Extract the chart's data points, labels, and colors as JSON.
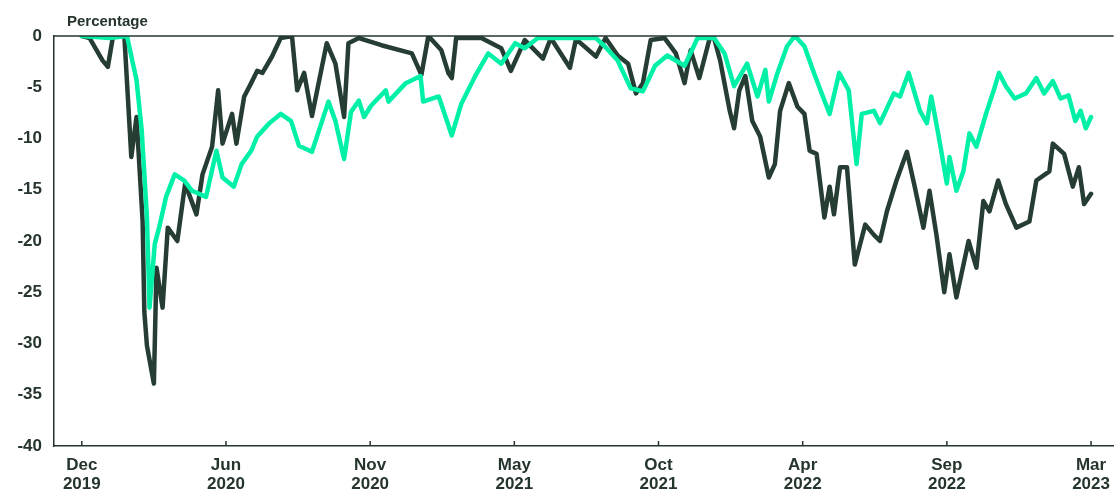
{
  "chart_data": {
    "type": "line",
    "ylabel": "Percentage",
    "xlim": [
      "2019-11-23",
      "2023-03-27"
    ],
    "ylim": [
      -40,
      0
    ],
    "yticks": [
      0,
      -5,
      -10,
      -15,
      -20,
      -25,
      -30,
      -35,
      -40
    ],
    "xticks": [
      {
        "value": "2019-12-25",
        "label": "Dec\n2019"
      },
      {
        "value": "2020-06-08",
        "label": "Jun\n2020"
      },
      {
        "value": "2020-11-21",
        "label": "Nov\n2020"
      },
      {
        "value": "2021-05-06",
        "label": "May\n2021"
      },
      {
        "value": "2021-10-19",
        "label": "Oct\n2021"
      },
      {
        "value": "2022-04-03",
        "label": "Apr\n2022"
      },
      {
        "value": "2022-09-16",
        "label": "Sep\n2022"
      },
      {
        "value": "2023-03-01",
        "label": "Mar\n2023"
      }
    ],
    "legend": false,
    "marker": "none",
    "line_style": "solid",
    "series": [
      {
        "color": "#00f0a8",
        "x": [
          "2019-12-25",
          "2020-01-26",
          "2020-02-15",
          "2020-02-26",
          "2020-03-03",
          "2020-03-09",
          "2020-03-12",
          "2020-03-18",
          "2020-03-23",
          "2020-03-31",
          "2020-04-10",
          "2020-04-21",
          "2020-04-30",
          "2020-05-16",
          "2020-05-28",
          "2020-06-04",
          "2020-06-17",
          "2020-06-26",
          "2020-07-07",
          "2020-07-14",
          "2020-07-28",
          "2020-08-10",
          "2020-08-22",
          "2020-08-31",
          "2020-09-15",
          "2020-10-04",
          "2020-10-12",
          "2020-10-22",
          "2020-10-30",
          "2020-11-08",
          "2020-11-14",
          "2020-11-22",
          "2020-12-09",
          "2020-12-12",
          "2021-01-01",
          "2021-01-18",
          "2021-01-21",
          "2021-02-08",
          "2021-02-23",
          "2021-03-06",
          "2021-03-22",
          "2021-04-06",
          "2021-04-21",
          "2021-05-07",
          "2021-05-18",
          "2021-06-02",
          "2021-07-07",
          "2021-08-08",
          "2021-08-18",
          "2021-09-02",
          "2021-09-17",
          "2021-10-01",
          "2021-10-15",
          "2021-10-29",
          "2021-11-18",
          "2021-12-03",
          "2021-12-22",
          "2022-01-03",
          "2022-01-14",
          "2022-01-29",
          "2022-02-10",
          "2022-02-19",
          "2022-02-23",
          "2022-03-05",
          "2022-03-16",
          "2022-03-25",
          "2022-04-05",
          "2022-04-16",
          "2022-04-28",
          "2022-05-04",
          "2022-05-15",
          "2022-05-26",
          "2022-06-04",
          "2022-06-10",
          "2022-06-24",
          "2022-07-01",
          "2022-07-17",
          "2022-07-24",
          "2022-08-03",
          "2022-08-16",
          "2022-08-24",
          "2022-08-29",
          "2022-09-06",
          "2022-09-16",
          "2022-09-19",
          "2022-09-27",
          "2022-10-05",
          "2022-10-12",
          "2022-10-20",
          "2022-10-31",
          "2022-11-09",
          "2022-11-15",
          "2022-11-23",
          "2022-12-03",
          "2022-12-16",
          "2022-12-28",
          "2023-01-06",
          "2023-01-16",
          "2023-01-25",
          "2023-02-03",
          "2023-02-11",
          "2023-02-17",
          "2023-02-23",
          "2023-03-01"
        ],
        "values": [
          0,
          -0.2,
          0,
          -4.3,
          -9.2,
          -17.7,
          -26.5,
          -20.3,
          -18.7,
          -15.7,
          -13.5,
          -14.1,
          -15.1,
          -15.7,
          -11.2,
          -13.8,
          -14.7,
          -12.5,
          -11.2,
          -9.8,
          -8.5,
          -7.6,
          -8.3,
          -10.7,
          -11.3,
          -6.4,
          -8.3,
          -12,
          -7.4,
          -6.3,
          -7.9,
          -6.8,
          -5.3,
          -6.4,
          -4.6,
          -3.9,
          -6.4,
          -5.9,
          -9.7,
          -6.6,
          -3.9,
          -1.7,
          -2.7,
          -0.7,
          -1.2,
          -0.2,
          -0.2,
          -0.2,
          -1,
          -2.4,
          -5.1,
          -5.4,
          -2.9,
          -1.9,
          -2.9,
          -0.2,
          -0.2,
          -1.7,
          -4.9,
          -2.7,
          -5.9,
          -3.3,
          -6.4,
          -3.6,
          -1,
          0,
          -1,
          -3.6,
          -6.3,
          -7.6,
          -3.6,
          -5.3,
          -12.5,
          -7.6,
          -7.3,
          -8.5,
          -5.6,
          -5.9,
          -3.6,
          -7.3,
          -8.5,
          -5.9,
          -9.5,
          -14.4,
          -11.8,
          -15.1,
          -13.2,
          -9.5,
          -10.8,
          -7.6,
          -5.3,
          -3.6,
          -4.9,
          -6.1,
          -5.6,
          -4.1,
          -5.6,
          -4.4,
          -6.1,
          -5.8,
          -8.3,
          -7.3,
          -9,
          -7.9
        ]
      },
      {
        "color": "#263d33",
        "x": [
          "2019-12-25",
          "2020-01-03",
          "2020-01-18",
          "2020-01-24",
          "2020-01-30",
          "2020-02-12",
          "2020-02-20",
          "2020-02-26",
          "2020-03-04",
          "2020-03-06",
          "2020-03-09",
          "2020-03-17",
          "2020-03-20",
          "2020-03-27",
          "2020-04-02",
          "2020-04-13",
          "2020-04-22",
          "2020-05-05",
          "2020-05-12",
          "2020-05-23",
          "2020-05-30",
          "2020-06-04",
          "2020-06-15",
          "2020-06-20",
          "2020-06-29",
          "2020-07-07",
          "2020-07-14",
          "2020-07-20",
          "2020-07-31",
          "2020-08-10",
          "2020-08-23",
          "2020-08-29",
          "2020-09-06",
          "2020-09-15",
          "2020-10-02",
          "2020-10-12",
          "2020-10-22",
          "2020-10-27",
          "2020-11-08",
          "2020-12-04",
          "2021-01-08",
          "2021-01-19",
          "2021-01-27",
          "2021-02-11",
          "2021-02-19",
          "2021-02-23",
          "2021-02-28",
          "2021-03-29",
          "2021-04-21",
          "2021-05-02",
          "2021-05-18",
          "2021-06-08",
          "2021-06-17",
          "2021-07-09",
          "2021-07-16",
          "2021-08-08",
          "2021-08-19",
          "2021-09-02",
          "2021-09-14",
          "2021-09-23",
          "2021-10-01",
          "2021-10-10",
          "2021-10-26",
          "2021-11-08",
          "2021-11-18",
          "2021-11-25",
          "2021-12-05",
          "2021-12-17",
          "2021-12-22",
          "2021-12-29",
          "2022-01-09",
          "2022-01-14",
          "2022-01-20",
          "2022-01-27",
          "2022-02-04",
          "2022-02-13",
          "2022-02-23",
          "2022-03-02",
          "2022-03-08",
          "2022-03-18",
          "2022-03-28",
          "2022-04-05",
          "2022-04-11",
          "2022-04-19",
          "2022-04-28",
          "2022-05-04",
          "2022-05-09",
          "2022-05-16",
          "2022-05-24",
          "2022-06-02",
          "2022-06-14",
          "2022-06-24",
          "2022-07-01",
          "2022-07-09",
          "2022-07-20",
          "2022-08-01",
          "2022-08-10",
          "2022-08-20",
          "2022-08-27",
          "2022-09-04",
          "2022-09-13",
          "2022-09-19",
          "2022-09-27",
          "2022-10-11",
          "2022-10-20",
          "2022-10-28",
          "2022-11-04",
          "2022-11-14",
          "2022-11-23",
          "2022-12-05",
          "2022-12-20",
          "2022-12-28",
          "2023-01-12",
          "2023-01-16",
          "2023-01-29",
          "2023-02-08",
          "2023-02-15",
          "2023-02-21",
          "2023-03-01"
        ],
        "values": [
          0,
          -0.2,
          -2.4,
          -3,
          0,
          0,
          -11.8,
          -7.9,
          -18,
          -26.9,
          -30.2,
          -33.9,
          -22.6,
          -26.5,
          -18.7,
          -20,
          -14.4,
          -17.4,
          -13.5,
          -10.8,
          -5.3,
          -10.5,
          -7.6,
          -10.5,
          -5.9,
          -4.6,
          -3.4,
          -3.6,
          -2,
          -0.2,
          0,
          -5.3,
          -3.6,
          -7.8,
          -0.7,
          -2.7,
          -7.9,
          -0.7,
          -0.2,
          -0.9,
          -1.7,
          -3.8,
          0,
          -1.4,
          -3.6,
          -4.1,
          -0.2,
          -0.2,
          -1.2,
          -3.4,
          -0.4,
          -2.2,
          -0.2,
          -3.1,
          -0.3,
          -2,
          -0.2,
          -1.9,
          -2.7,
          -5.6,
          -4.6,
          -0.4,
          -0.2,
          -1.7,
          -4.6,
          -1.4,
          -4.1,
          -0.2,
          -0.2,
          -2.4,
          -7.3,
          -9,
          -5.3,
          -3.9,
          -8.3,
          -9.8,
          -13.8,
          -12.5,
          -7.3,
          -4.6,
          -6.9,
          -7.6,
          -11.2,
          -11.5,
          -17.7,
          -14.7,
          -17.4,
          -12.8,
          -12.8,
          -22.3,
          -18.4,
          -19.4,
          -20,
          -17.1,
          -14.1,
          -11.3,
          -14.7,
          -18.7,
          -15.1,
          -19.4,
          -25,
          -21.3,
          -25.5,
          -20,
          -22.6,
          -16.1,
          -17.1,
          -14.1,
          -16.4,
          -18.7,
          -18.1,
          -14.1,
          -13.2,
          -10.5,
          -11.5,
          -14.7,
          -12.8,
          -16.4,
          -15.4
        ]
      }
    ]
  }
}
